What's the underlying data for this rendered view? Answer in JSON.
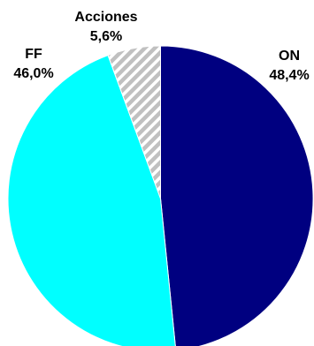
{
  "chart_data": {
    "type": "pie",
    "start": "12 o'clock",
    "direction": "clockwise",
    "slices": [
      {
        "label": "ON",
        "value": 48.4,
        "value_label": "48,4%",
        "color": "#000080",
        "pattern": "solid"
      },
      {
        "label": "FF",
        "value": 46.0,
        "value_label": "46,0%",
        "color": "#00FFFF",
        "pattern": "solid"
      },
      {
        "label": "Acciones",
        "value": 5.6,
        "value_label": "5,6%",
        "color": "#C0C0C0",
        "pattern": "diagonal-stripes"
      }
    ],
    "legend": "none"
  }
}
